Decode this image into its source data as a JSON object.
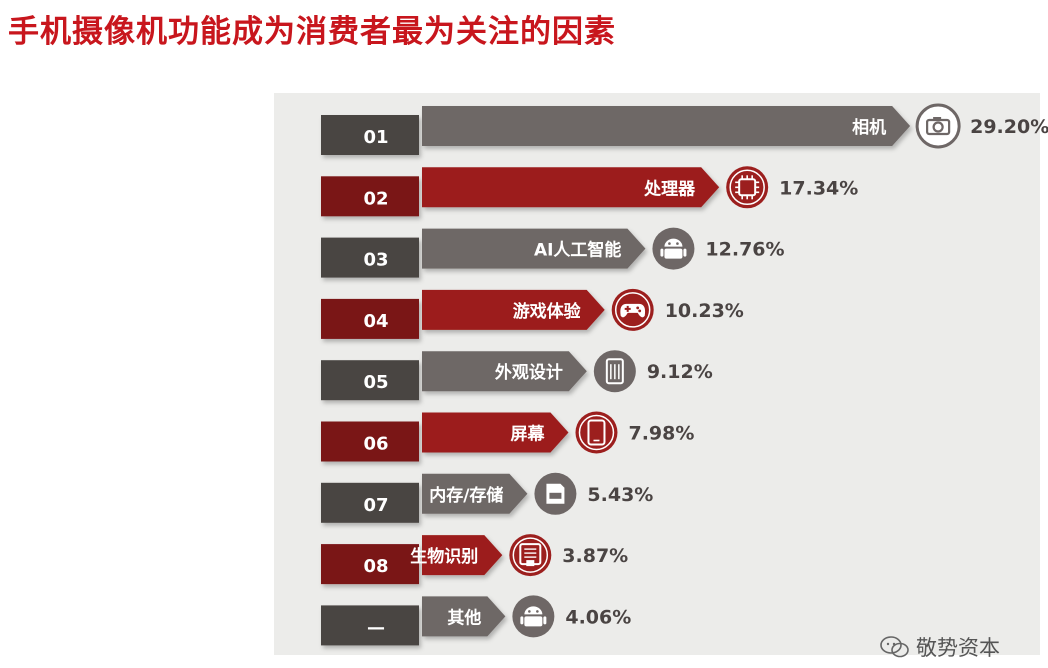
{
  "title": "手机摄像机功能成为消费者最为关注的因素",
  "watermark": "敬势资本",
  "colors": {
    "title": "#c8161d",
    "gray": "#6e6766",
    "gray_dark": "#4a4443",
    "red": "#9c1f1e",
    "red_dark": "#7a1516",
    "panel": "#ececea"
  },
  "chart_data": {
    "type": "bar",
    "orientation": "horizontal",
    "title": "",
    "xlabel": "",
    "ylabel": "",
    "categories": [
      "相机",
      "处理器",
      "AI人工智能",
      "游戏体验",
      "外观设计",
      "屏幕",
      "内存/存储",
      "生物识别",
      "其他"
    ],
    "ranks": [
      "01",
      "02",
      "03",
      "04",
      "05",
      "06",
      "07",
      "08",
      "—"
    ],
    "values": [
      29.2,
      17.34,
      12.76,
      10.23,
      9.12,
      7.98,
      5.43,
      3.87,
      4.06
    ],
    "value_labels": [
      "29.20%",
      "17.34%",
      "12.76%",
      "10.23%",
      "9.12%",
      "7.98%",
      "5.43%",
      "3.87%",
      "4.06%"
    ],
    "bar_colors": [
      "gray",
      "red",
      "gray",
      "red",
      "gray",
      "red",
      "gray",
      "red",
      "gray"
    ],
    "icons": [
      "camera-icon",
      "processor-chip-icon",
      "android-robot-icon",
      "gamepad-icon",
      "phone-design-icon",
      "smartphone-screen-icon",
      "sd-card-icon",
      "fingerprint-scanner-icon",
      "other-robot-icon"
    ]
  }
}
